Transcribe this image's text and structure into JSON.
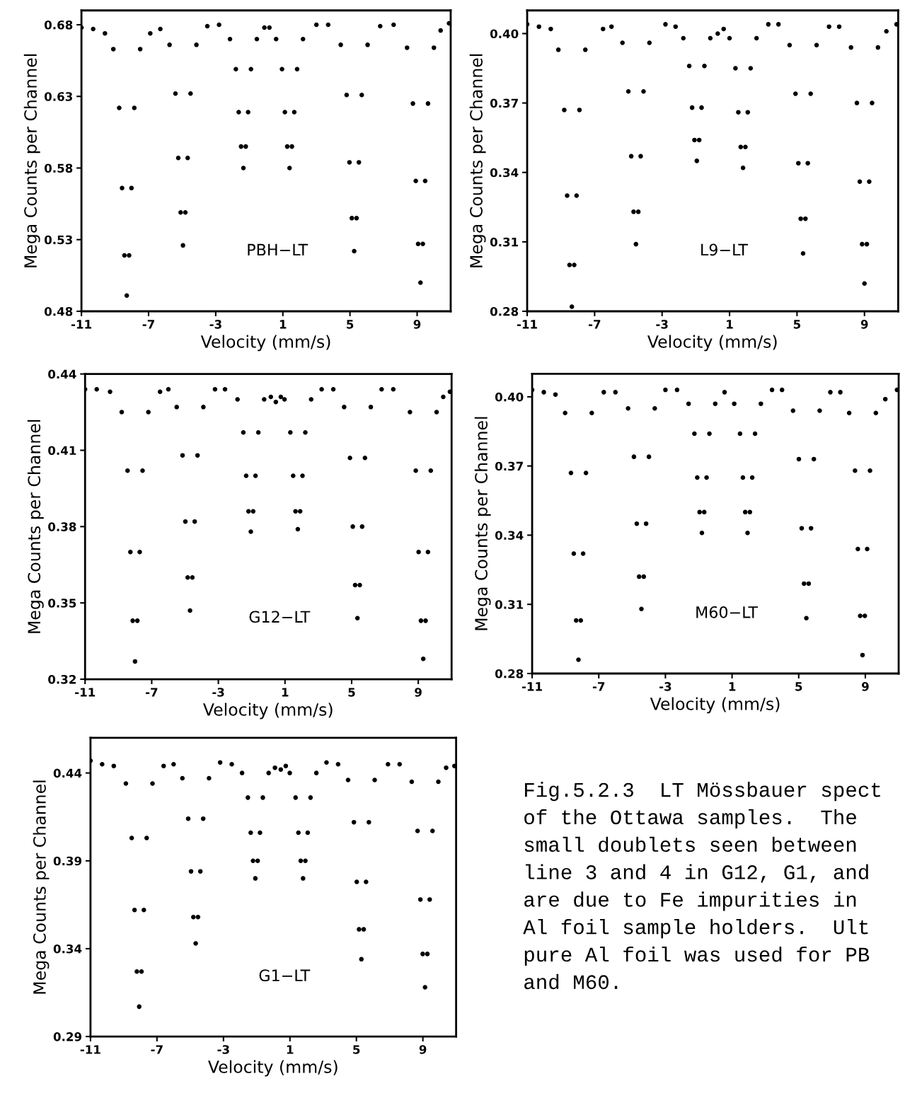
{
  "chart_data": [
    {
      "type": "scatter",
      "xlabel": "Velocity (mm/s)",
      "ylabel": "Mega Counts per Channel",
      "annotations": [
        "PBH−LT"
      ],
      "xlim": [
        -11,
        11
      ],
      "ylim": [
        0.48,
        0.69
      ],
      "xticks": [
        -11,
        -7,
        -3,
        1,
        5,
        9
      ],
      "yticks": [
        0.48,
        0.53,
        0.58,
        0.63,
        0.68
      ],
      "marker": "circle",
      "grid": false,
      "series": [
        {
          "color": "#000000",
          "x": [
            -11,
            -10.3,
            -9.6,
            -9.1,
            -8.75,
            -8.58,
            -8.44,
            -8.3,
            -8.16,
            -8.02,
            -7.85,
            -7.5,
            -6.9,
            -6.3,
            -5.75,
            -5.4,
            -5.23,
            -5.09,
            -4.95,
            -4.81,
            -4.67,
            -4.5,
            -4.15,
            -3.5,
            -2.8,
            -2.15,
            -1.8,
            -1.63,
            -1.49,
            -1.35,
            -1.21,
            -1.07,
            -0.9,
            -0.55,
            -0.1,
            0.2,
            0.6,
            0.95,
            1.12,
            1.26,
            1.4,
            1.54,
            1.68,
            1.85,
            2.2,
            3.0,
            3.7,
            4.45,
            4.8,
            4.97,
            5.11,
            5.25,
            5.39,
            5.53,
            5.7,
            6.05,
            6.8,
            7.6,
            8.4,
            8.75,
            8.92,
            9.06,
            9.2,
            9.34,
            9.48,
            9.65,
            10.0,
            10.4,
            10.9
          ],
          "values": [
            0.678,
            0.677,
            0.674,
            0.663,
            0.622,
            0.566,
            0.519,
            0.491,
            0.519,
            0.566,
            0.622,
            0.663,
            0.674,
            0.677,
            0.666,
            0.632,
            0.587,
            0.549,
            0.526,
            0.549,
            0.587,
            0.632,
            0.666,
            0.679,
            0.68,
            0.67,
            0.649,
            0.619,
            0.595,
            0.58,
            0.595,
            0.619,
            0.649,
            0.67,
            0.678,
            0.678,
            0.67,
            0.649,
            0.619,
            0.595,
            0.58,
            0.595,
            0.619,
            0.649,
            0.67,
            0.68,
            0.68,
            0.666,
            0.631,
            0.584,
            0.545,
            0.522,
            0.545,
            0.584,
            0.631,
            0.666,
            0.679,
            0.68,
            0.664,
            0.625,
            0.571,
            0.527,
            0.5,
            0.527,
            0.571,
            0.625,
            0.664,
            0.676,
            0.681
          ]
        }
      ]
    },
    {
      "type": "scatter",
      "xlabel": "Velocity (mm/s)",
      "ylabel": "Mega Counts per Channel",
      "annotations": [
        "L9−LT"
      ],
      "xlim": [
        -11,
        11
      ],
      "ylim": [
        0.28,
        0.41
      ],
      "xticks": [
        -11,
        -7,
        -3,
        1,
        5,
        9
      ],
      "yticks": [
        0.28,
        0.31,
        0.34,
        0.37,
        {
          "value": 0.4,
          "label": "0.40"
        }
      ],
      "marker": "circle",
      "grid": false,
      "series": [
        {
          "color": "#000000",
          "x": [
            -11,
            -10.3,
            -9.6,
            -9.15,
            -8.8,
            -8.63,
            -8.49,
            -8.35,
            -8.21,
            -8.07,
            -7.9,
            -7.55,
            -6.5,
            -6.0,
            -5.35,
            -5.0,
            -4.83,
            -4.69,
            -4.55,
            -4.41,
            -4.27,
            -4.1,
            -3.75,
            -2.8,
            -2.2,
            -1.74,
            -1.39,
            -1.22,
            -1.08,
            -0.94,
            -0.8,
            -0.66,
            -0.49,
            -0.14,
            0.3,
            0.65,
            1.0,
            1.35,
            1.52,
            1.66,
            1.8,
            1.94,
            2.08,
            2.25,
            2.6,
            3.3,
            3.9,
            4.56,
            4.91,
            5.08,
            5.22,
            5.36,
            5.5,
            5.64,
            5.81,
            6.16,
            6.9,
            7.5,
            8.2,
            8.55,
            8.72,
            8.86,
            9.0,
            9.14,
            9.28,
            9.45,
            9.8,
            10.3,
            10.9
          ],
          "values": [
            0.404,
            0.403,
            0.402,
            0.393,
            0.367,
            0.33,
            0.3,
            0.282,
            0.3,
            0.33,
            0.367,
            0.393,
            0.402,
            0.403,
            0.396,
            0.375,
            0.347,
            0.323,
            0.309,
            0.323,
            0.347,
            0.375,
            0.396,
            0.404,
            0.403,
            0.398,
            0.386,
            0.368,
            0.354,
            0.345,
            0.354,
            0.368,
            0.386,
            0.398,
            0.4,
            0.402,
            0.398,
            0.385,
            0.366,
            0.351,
            0.342,
            0.351,
            0.366,
            0.385,
            0.398,
            0.404,
            0.404,
            0.395,
            0.374,
            0.344,
            0.32,
            0.305,
            0.32,
            0.344,
            0.374,
            0.395,
            0.403,
            0.403,
            0.394,
            0.37,
            0.336,
            0.309,
            0.292,
            0.309,
            0.336,
            0.37,
            0.394,
            0.401,
            0.404
          ]
        }
      ]
    },
    {
      "type": "scatter",
      "xlabel": "Velocity (mm/s)",
      "ylabel": "Mega Counts per Channel",
      "annotations": [
        "G12−LT"
      ],
      "xlim": [
        -11,
        11
      ],
      "ylim": [
        0.32,
        0.44
      ],
      "xticks": [
        -11,
        -7,
        -3,
        1,
        5,
        9
      ],
      "yticks": [
        0.32,
        0.35,
        0.38,
        0.41,
        0.44
      ],
      "marker": "circle",
      "grid": false,
      "series": [
        {
          "color": "#000000",
          "x": [
            -11,
            -10.3,
            -9.5,
            -8.8,
            -8.45,
            -8.28,
            -8.14,
            -8.0,
            -7.86,
            -7.72,
            -7.55,
            -7.2,
            -6.5,
            -6.0,
            -5.5,
            -5.15,
            -4.98,
            -4.84,
            -4.7,
            -4.56,
            -4.42,
            -4.25,
            -3.9,
            -3.2,
            -2.6,
            -1.85,
            -1.5,
            -1.33,
            -1.19,
            -1.05,
            -0.91,
            -0.77,
            -0.6,
            -0.25,
            0.15,
            0.45,
            0.75,
            0.97,
            1.32,
            1.49,
            1.63,
            1.77,
            1.91,
            2.05,
            2.22,
            2.57,
            3.2,
            3.9,
            4.55,
            4.9,
            5.07,
            5.21,
            5.35,
            5.49,
            5.63,
            5.8,
            6.15,
            6.8,
            7.5,
            8.5,
            8.85,
            9.02,
            9.16,
            9.3,
            9.44,
            9.58,
            9.75,
            10.1,
            10.5,
            10.9
          ],
          "values": [
            0.434,
            0.434,
            0.433,
            0.425,
            0.402,
            0.37,
            0.343,
            0.327,
            0.343,
            0.37,
            0.402,
            0.425,
            0.433,
            0.434,
            0.427,
            0.408,
            0.382,
            0.36,
            0.347,
            0.36,
            0.382,
            0.408,
            0.427,
            0.434,
            0.434,
            0.43,
            0.417,
            0.4,
            0.386,
            0.378,
            0.386,
            0.4,
            0.417,
            0.43,
            0.431,
            0.429,
            0.431,
            0.43,
            0.417,
            0.4,
            0.386,
            0.379,
            0.386,
            0.4,
            0.417,
            0.43,
            0.434,
            0.434,
            0.427,
            0.407,
            0.38,
            0.357,
            0.344,
            0.357,
            0.38,
            0.407,
            0.427,
            0.434,
            0.434,
            0.425,
            0.402,
            0.37,
            0.343,
            0.328,
            0.343,
            0.37,
            0.402,
            0.425,
            0.431,
            0.433
          ]
        }
      ]
    },
    {
      "type": "scatter",
      "xlabel": "Velocity (mm/s)",
      "ylabel": "Mega Counts per Channel",
      "annotations": [
        "M60−LT"
      ],
      "xlim": [
        -11,
        11
      ],
      "ylim": [
        0.28,
        0.41
      ],
      "xticks": [
        -11,
        -7,
        -3,
        1,
        5,
        9
      ],
      "yticks": [
        0.28,
        0.31,
        0.34,
        0.37,
        {
          "value": 0.4,
          "label": "0.40"
        }
      ],
      "marker": "circle",
      "grid": false,
      "series": [
        {
          "color": "#000000",
          "x": [
            -11,
            -10.3,
            -9.6,
            -9.02,
            -8.67,
            -8.5,
            -8.36,
            -8.22,
            -8.08,
            -7.94,
            -7.77,
            -7.42,
            -6.7,
            -6.0,
            -5.24,
            -4.89,
            -4.72,
            -4.58,
            -4.44,
            -4.3,
            -4.16,
            -3.99,
            -3.64,
            -3.0,
            -2.3,
            -1.61,
            -1.26,
            -1.09,
            -0.95,
            -0.81,
            -0.67,
            -0.53,
            -0.36,
            -0.01,
            0.55,
            1.13,
            1.48,
            1.65,
            1.79,
            1.93,
            2.07,
            2.21,
            2.38,
            2.73,
            3.4,
            4.0,
            4.66,
            5.01,
            5.18,
            5.32,
            5.46,
            5.6,
            5.74,
            5.91,
            6.26,
            6.9,
            7.5,
            8.03,
            8.38,
            8.55,
            8.69,
            8.83,
            8.97,
            9.11,
            9.28,
            9.63,
            10.2,
            10.9
          ],
          "values": [
            0.403,
            0.402,
            0.401,
            0.393,
            0.367,
            0.332,
            0.303,
            0.286,
            0.303,
            0.332,
            0.367,
            0.393,
            0.402,
            0.402,
            0.395,
            0.374,
            0.345,
            0.322,
            0.308,
            0.322,
            0.345,
            0.374,
            0.395,
            0.403,
            0.403,
            0.397,
            0.384,
            0.365,
            0.35,
            0.341,
            0.35,
            0.365,
            0.384,
            0.397,
            0.402,
            0.397,
            0.384,
            0.365,
            0.35,
            0.341,
            0.35,
            0.365,
            0.384,
            0.397,
            0.403,
            0.403,
            0.394,
            0.373,
            0.343,
            0.319,
            0.304,
            0.319,
            0.343,
            0.373,
            0.394,
            0.402,
            0.402,
            0.393,
            0.368,
            0.334,
            0.305,
            0.288,
            0.305,
            0.334,
            0.368,
            0.393,
            0.399,
            0.403
          ]
        }
      ]
    },
    {
      "type": "scatter",
      "xlabel": "Velocity (mm/s)",
      "ylabel": "Mega Counts per Channel",
      "annotations": [
        "G1−LT"
      ],
      "xlim": [
        -11,
        11
      ],
      "ylim": [
        0.29,
        0.46
      ],
      "xticks": [
        -11,
        -7,
        -3,
        1,
        5,
        9
      ],
      "yticks": [
        0.29,
        0.34,
        0.39,
        0.44
      ],
      "marker": "circle",
      "grid": false,
      "series": [
        {
          "color": "#000000",
          "x": [
            -11,
            -10.3,
            -9.6,
            -8.87,
            -8.52,
            -8.35,
            -8.21,
            -8.07,
            -7.93,
            -7.79,
            -7.62,
            -7.27,
            -6.6,
            -6.0,
            -5.47,
            -5.12,
            -4.95,
            -4.81,
            -4.67,
            -4.53,
            -4.39,
            -4.22,
            -3.87,
            -3.2,
            -2.5,
            -1.88,
            -1.53,
            -1.36,
            -1.22,
            -1.08,
            -0.94,
            -0.8,
            -0.63,
            -0.28,
            0.1,
            0.45,
            0.75,
            0.99,
            1.34,
            1.51,
            1.65,
            1.79,
            1.93,
            2.07,
            2.24,
            2.59,
            3.2,
            3.9,
            4.5,
            4.85,
            5.02,
            5.16,
            5.3,
            5.44,
            5.58,
            5.75,
            6.1,
            6.9,
            7.6,
            8.33,
            8.68,
            8.85,
            8.99,
            9.13,
            9.27,
            9.41,
            9.58,
            9.93,
            10.4,
            10.9
          ],
          "values": [
            0.447,
            0.445,
            0.444,
            0.434,
            0.403,
            0.362,
            0.327,
            0.307,
            0.327,
            0.362,
            0.403,
            0.434,
            0.444,
            0.445,
            0.437,
            0.414,
            0.384,
            0.358,
            0.343,
            0.358,
            0.384,
            0.414,
            0.437,
            0.446,
            0.445,
            0.44,
            0.426,
            0.406,
            0.39,
            0.38,
            0.39,
            0.406,
            0.426,
            0.44,
            0.443,
            0.442,
            0.444,
            0.44,
            0.426,
            0.406,
            0.39,
            0.38,
            0.39,
            0.406,
            0.426,
            0.44,
            0.446,
            0.445,
            0.436,
            0.412,
            0.378,
            0.351,
            0.334,
            0.351,
            0.378,
            0.412,
            0.436,
            0.445,
            0.445,
            0.435,
            0.407,
            0.368,
            0.337,
            0.318,
            0.337,
            0.368,
            0.407,
            0.435,
            0.443,
            0.444
          ]
        }
      ]
    },
    {
      "type": "other",
      "annotations": [
        "Fig.5.2.3  LT Mössbauer spect\nof the Ottawa samples.  The\nsmall doublets seen between\nline 3 and 4 in G12, G1, and\nare due to Fe impurities in\nAl foil sample holders.  Ult\npure Al foil was used for PB\nand M60."
      ]
    }
  ]
}
